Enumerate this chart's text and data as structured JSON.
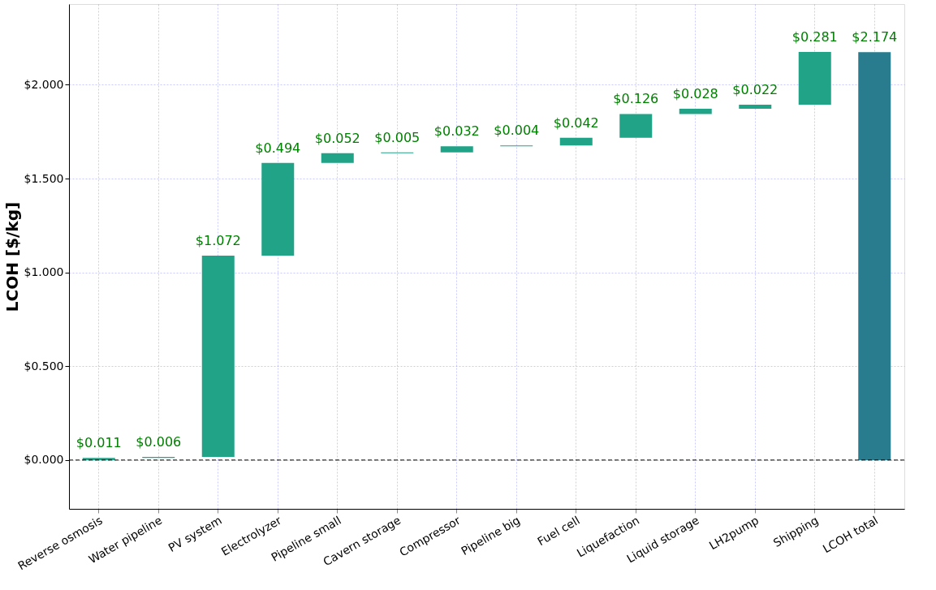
{
  "chart_data": {
    "type": "bar",
    "ylabel": "LCOH [$/kg]",
    "categories": [
      "Reverse osmosis",
      "Water pipeline",
      "PV system",
      "Electrolyzer",
      "Pipeline small",
      "Cavern storage",
      "Compressor",
      "Pipeline big",
      "Fuel cell",
      "Liquefaction",
      "Liquid storage",
      "LH2pump",
      "Shipping",
      "LCOH total"
    ],
    "values": [
      0.011,
      0.006,
      1.072,
      0.494,
      0.052,
      0.005,
      0.032,
      0.004,
      0.042,
      0.126,
      0.028,
      0.022,
      0.281,
      2.174
    ],
    "base": [
      0,
      0.011,
      0.017,
      1.089,
      1.583,
      1.635,
      1.64,
      1.672,
      1.676,
      1.718,
      1.844,
      1.872,
      1.894,
      0
    ],
    "colors": [
      "#20a386",
      "#20a386",
      "#20a386",
      "#20a386",
      "#20a386",
      "#20a386",
      "#20a386",
      "#20a386",
      "#20a386",
      "#20a386",
      "#20a386",
      "#20a386",
      "#20a386",
      "#287c8e"
    ],
    "value_labels": [
      "$0.011",
      "$0.006",
      "$1.072",
      "$0.494",
      "$0.052",
      "$0.005",
      "$0.032",
      "$0.004",
      "$0.042",
      "$0.126",
      "$0.028",
      "$0.022",
      "$0.281",
      "$2.174"
    ],
    "ylim": [
      -0.26,
      2.43
    ],
    "yticks": [
      {
        "value": 0,
        "label": "$0.000"
      },
      {
        "value": 0.5,
        "label": "$0.500"
      },
      {
        "value": 1.0,
        "label": "$1.000"
      },
      {
        "value": 1.5,
        "label": "$1.500"
      },
      {
        "value": 2.0,
        "label": "$2.000"
      }
    ],
    "ref_lines": [
      {
        "axis": "y",
        "value": 0,
        "color": "#000000",
        "line_style": "dashed"
      }
    ],
    "grid": true
  }
}
